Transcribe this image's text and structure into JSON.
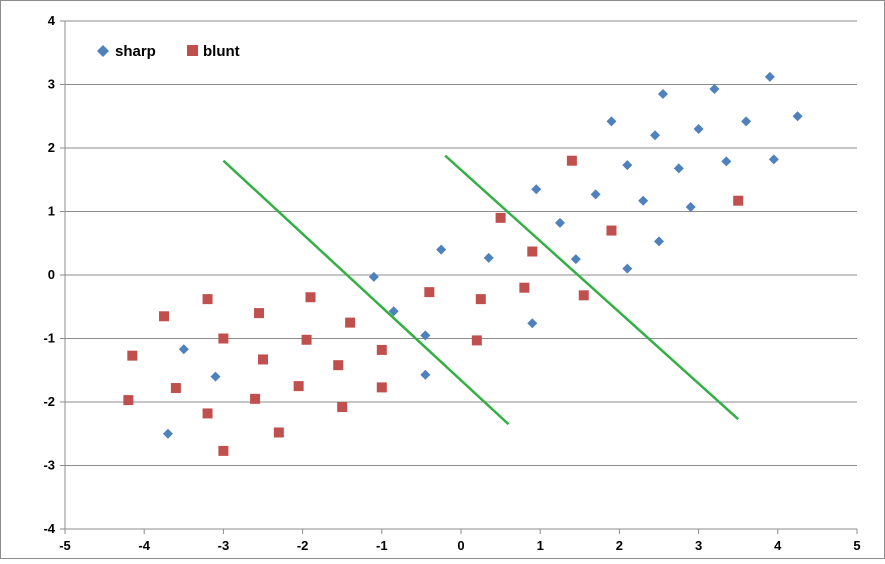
{
  "chart_data": {
    "type": "scatter",
    "title": "",
    "xlabel": "",
    "ylabel": "",
    "xlim": [
      -5,
      5
    ],
    "ylim": [
      -4,
      4
    ],
    "x_ticks": [
      -5,
      -4,
      -3,
      -2,
      -1,
      0,
      1,
      2,
      3,
      4,
      5
    ],
    "y_ticks": [
      -4,
      -3,
      -2,
      -1,
      0,
      1,
      2,
      3,
      4
    ],
    "x_tick_labels": [
      "-5",
      "-4",
      "-3",
      "-2",
      "-1",
      "0",
      "1",
      "2",
      "3",
      "4",
      "5"
    ],
    "y_tick_labels": [
      "-4",
      "-3",
      "-2",
      "-1",
      "0",
      "1",
      "2",
      "3",
      "4"
    ],
    "grid": "horizontal",
    "legend_position": "top-left",
    "series": [
      {
        "name": "sharp",
        "marker": "diamond",
        "color": "#4F81BD",
        "points": [
          [
            -3.7,
            -2.5
          ],
          [
            -3.5,
            -1.17
          ],
          [
            -3.1,
            -1.6
          ],
          [
            -1.1,
            -0.03
          ],
          [
            -0.85,
            -0.57
          ],
          [
            -0.45,
            -0.95
          ],
          [
            -0.45,
            -1.57
          ],
          [
            -0.25,
            0.4
          ],
          [
            0.35,
            0.27
          ],
          [
            0.9,
            -0.76
          ],
          [
            0.95,
            1.35
          ],
          [
            1.25,
            0.82
          ],
          [
            1.45,
            0.25
          ],
          [
            1.7,
            1.27
          ],
          [
            1.9,
            2.42
          ],
          [
            2.1,
            1.73
          ],
          [
            2.1,
            0.1
          ],
          [
            2.3,
            1.17
          ],
          [
            2.45,
            2.2
          ],
          [
            2.5,
            0.53
          ],
          [
            2.55,
            2.85
          ],
          [
            2.75,
            1.68
          ],
          [
            2.9,
            1.07
          ],
          [
            3.0,
            2.3
          ],
          [
            3.2,
            2.93
          ],
          [
            3.35,
            1.79
          ],
          [
            3.6,
            2.42
          ],
          [
            3.9,
            3.12
          ],
          [
            3.95,
            1.82
          ],
          [
            4.25,
            2.5
          ]
        ]
      },
      {
        "name": "blunt",
        "marker": "square",
        "color": "#C0504D",
        "points": [
          [
            -4.2,
            -1.97
          ],
          [
            -4.15,
            -1.27
          ],
          [
            -3.75,
            -0.65
          ],
          [
            -3.6,
            -1.78
          ],
          [
            -3.2,
            -0.38
          ],
          [
            -3.2,
            -2.18
          ],
          [
            -3.0,
            -1.0
          ],
          [
            -3.0,
            -2.77
          ],
          [
            -2.55,
            -0.6
          ],
          [
            -2.6,
            -1.95
          ],
          [
            -2.5,
            -1.33
          ],
          [
            -2.3,
            -2.48
          ],
          [
            -2.05,
            -1.75
          ],
          [
            -1.95,
            -1.02
          ],
          [
            -1.9,
            -0.35
          ],
          [
            -1.55,
            -1.42
          ],
          [
            -1.5,
            -2.08
          ],
          [
            -1.4,
            -0.75
          ],
          [
            -1.0,
            -1.18
          ],
          [
            -1.0,
            -1.77
          ],
          [
            -0.4,
            -0.27
          ],
          [
            0.2,
            -1.03
          ],
          [
            0.25,
            -0.38
          ],
          [
            0.5,
            0.9
          ],
          [
            0.8,
            -0.2
          ],
          [
            0.9,
            0.37
          ],
          [
            1.4,
            1.8
          ],
          [
            1.55,
            -0.32
          ],
          [
            1.9,
            0.7
          ],
          [
            3.5,
            1.17
          ]
        ]
      }
    ],
    "lines": [
      {
        "color": "#33B044",
        "from": [
          -3.0,
          1.8
        ],
        "to": [
          0.6,
          -2.35
        ]
      },
      {
        "color": "#33B044",
        "from": [
          -0.2,
          1.88
        ],
        "to": [
          3.5,
          -2.27
        ]
      }
    ]
  }
}
